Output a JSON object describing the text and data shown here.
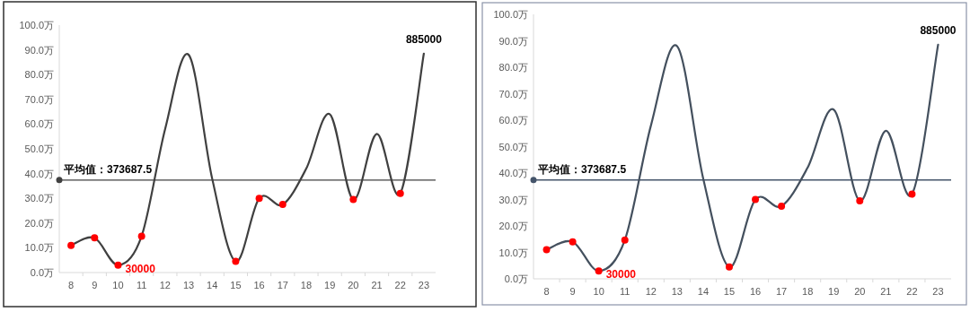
{
  "chart_data": [
    {
      "type": "line",
      "categories": [
        "8",
        "9",
        "10",
        "11",
        "12",
        "13",
        "14",
        "15",
        "16",
        "17",
        "18",
        "19",
        "20",
        "21",
        "22",
        "23"
      ],
      "series": [
        {
          "type": "line",
          "color": "#404040",
          "values": [
            11,
            14,
            3,
            14.7,
            58,
            88,
            38,
            4.5,
            30,
            27.5,
            42,
            64,
            29.5,
            56,
            32,
            88.5
          ]
        },
        {
          "type": "scatter",
          "marker": "circle",
          "color": "#ff0000",
          "values": [
            11,
            14,
            3,
            14.7,
            null,
            null,
            null,
            4.5,
            30,
            27.5,
            null,
            null,
            29.5,
            null,
            32,
            null
          ]
        }
      ],
      "ylim": [
        0,
        100
      ],
      "yticks": [
        {
          "value": 0,
          "label": "0.0万"
        },
        {
          "value": 10,
          "label": "10.0万"
        },
        {
          "value": 20,
          "label": "20.0万"
        },
        {
          "value": 30,
          "label": "30.0万"
        },
        {
          "value": 40,
          "label": "40.0万"
        },
        {
          "value": 50,
          "label": "50.0万"
        },
        {
          "value": 60,
          "label": "60.0万"
        },
        {
          "value": 70,
          "label": "70.0万"
        },
        {
          "value": 80,
          "label": "80.0万"
        },
        {
          "value": 90,
          "label": "90.0万"
        },
        {
          "value": 100,
          "label": "100.0万"
        }
      ],
      "ref_lines": [
        {
          "axis": "y",
          "value": 37.36875,
          "label": "平均值：373687.5",
          "color": "#404040"
        }
      ],
      "annotations": [
        {
          "text": "30000",
          "x": "10",
          "y": 3
        },
        {
          "text": "885000",
          "x": "23",
          "y": 88.5
        }
      ],
      "grid": false
    },
    {
      "type": "line",
      "categories": [
        "8",
        "9",
        "10",
        "11",
        "12",
        "13",
        "14",
        "15",
        "16",
        "17",
        "18",
        "19",
        "20",
        "21",
        "22",
        "23"
      ],
      "series": [
        {
          "type": "line",
          "color": "#44505e",
          "values": [
            11,
            14,
            3,
            14.7,
            58,
            88,
            38,
            4.5,
            30,
            27.5,
            42,
            64,
            29.5,
            56,
            32,
            88.5
          ]
        },
        {
          "type": "scatter",
          "marker": "circle",
          "color": "#ff0000",
          "values": [
            11,
            14,
            3,
            14.7,
            null,
            null,
            null,
            4.5,
            30,
            27.5,
            null,
            null,
            29.5,
            null,
            32,
            null
          ]
        }
      ],
      "ylim": [
        0,
        100
      ],
      "yticks": [
        {
          "value": 0,
          "label": "0.0万"
        },
        {
          "value": 10,
          "label": "10.0万"
        },
        {
          "value": 20,
          "label": "20.0万"
        },
        {
          "value": 30,
          "label": "30.0万"
        },
        {
          "value": 40,
          "label": "40.0万"
        },
        {
          "value": 50,
          "label": "50.0万"
        },
        {
          "value": 60,
          "label": "60.0万"
        },
        {
          "value": 70,
          "label": "70.0万"
        },
        {
          "value": 80,
          "label": "80.0万"
        },
        {
          "value": 90,
          "label": "90.0万"
        },
        {
          "value": 100,
          "label": "100.0万"
        }
      ],
      "ref_lines": [
        {
          "axis": "y",
          "value": 37.36875,
          "label": "平均值：373687.5",
          "color": "#44546a"
        }
      ],
      "annotations": [
        {
          "text": "30000",
          "x": "10",
          "y": 3
        },
        {
          "text": "885000",
          "x": "23",
          "y": 88.5
        }
      ],
      "grid": false
    }
  ]
}
